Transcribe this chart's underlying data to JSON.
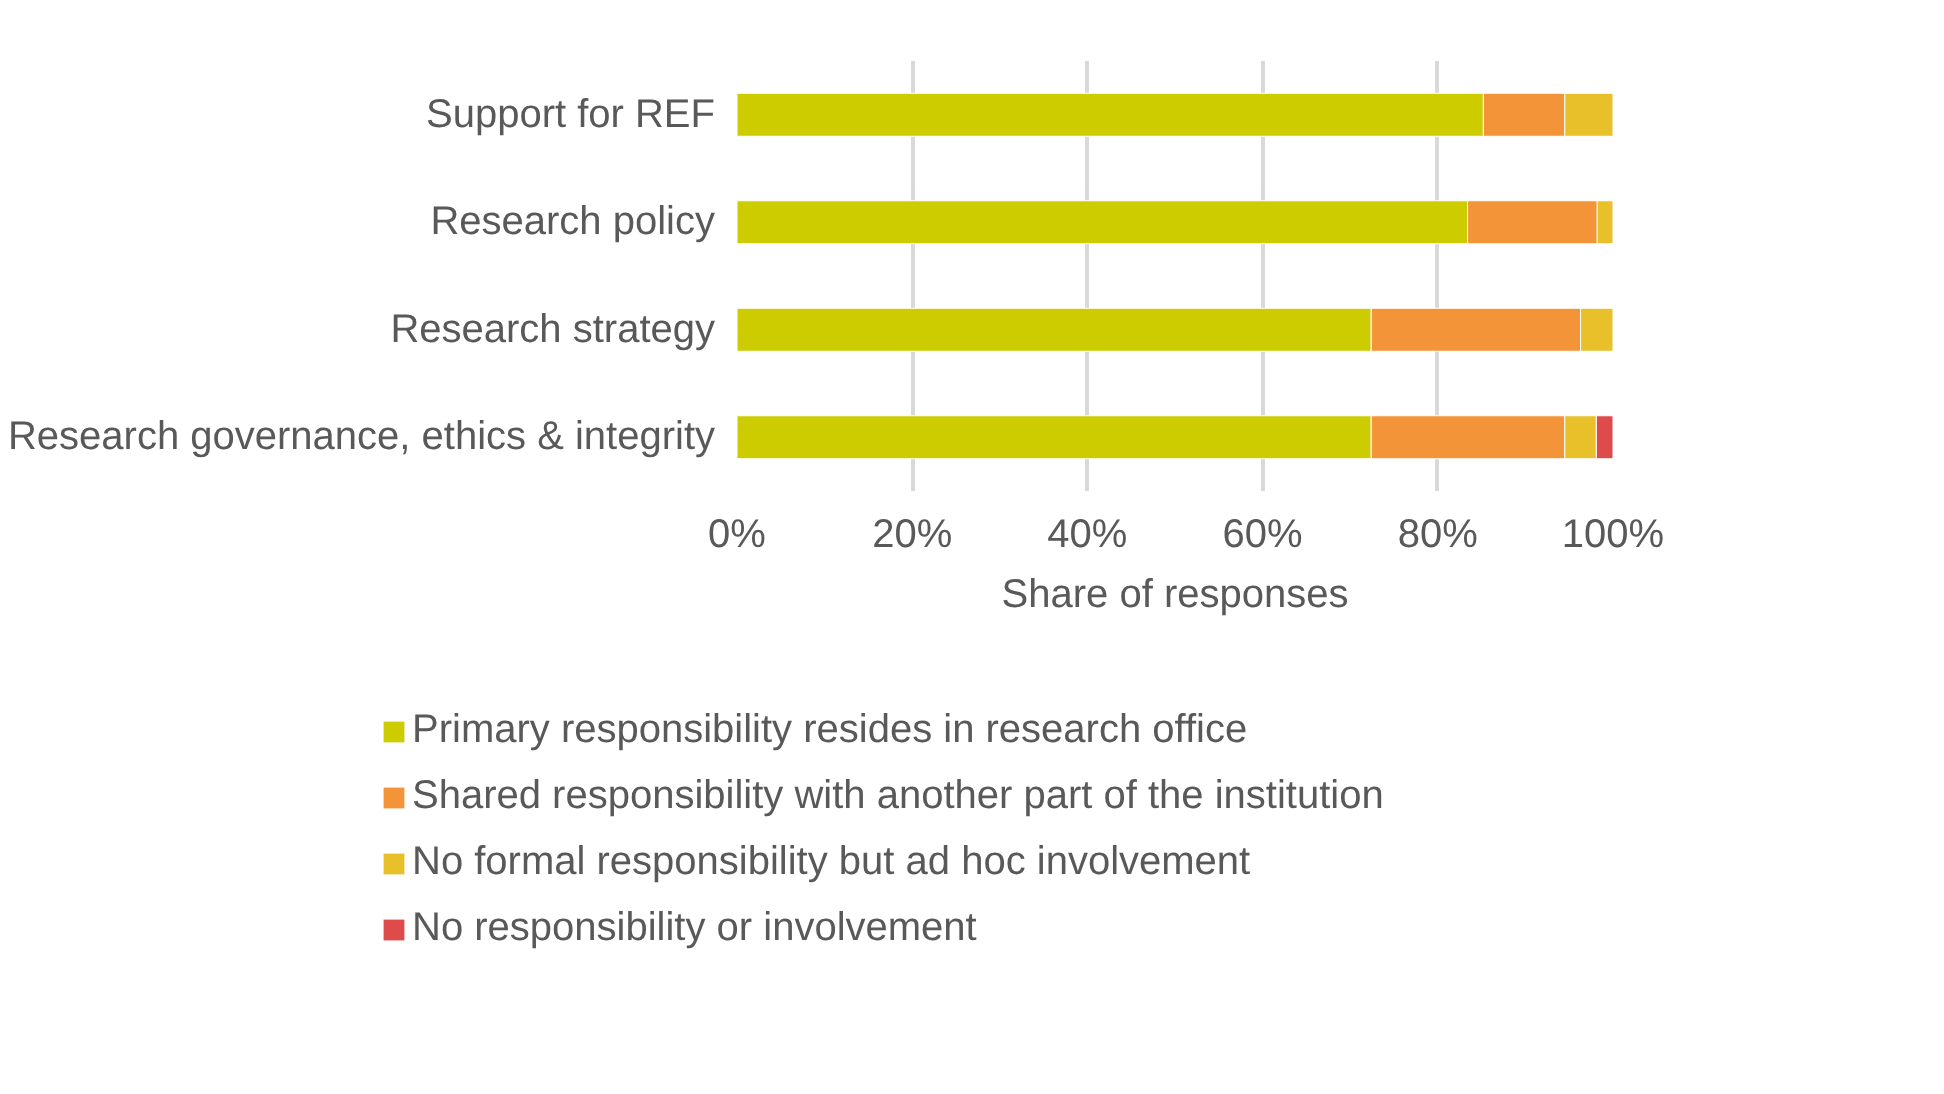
{
  "chart_data": {
    "type": "bar",
    "orientation": "horizontal",
    "stacked": true,
    "categories": [
      "Support for REF",
      "Research policy",
      "Research strategy",
      "Research governance, ethics & integrity"
    ],
    "xlabel": "Share of responses",
    "xlim": [
      0,
      100
    ],
    "xticks": [
      {
        "value": 0,
        "label": "0%"
      },
      {
        "value": 20,
        "label": "20%"
      },
      {
        "value": 40,
        "label": "40%"
      },
      {
        "value": 60,
        "label": "60%"
      },
      {
        "value": 80,
        "label": "80%"
      },
      {
        "value": 100,
        "label": "100%"
      }
    ],
    "grid": "x",
    "legend": "bottom",
    "series": [
      {
        "name": "Primary responsibility resides in research office",
        "color": "#cccc00",
        "values": [
          85.2,
          83.4,
          72.4,
          72.4
        ]
      },
      {
        "name": "Shared responsibility with another part of the institution",
        "color": "#f39438",
        "values": [
          9.3,
          14.8,
          23.9,
          22.1
        ]
      },
      {
        "name": "No formal responsibility but ad hoc involvement",
        "color": "#e8c12a",
        "values": [
          5.5,
          1.8,
          3.7,
          3.6
        ]
      },
      {
        "name": "No responsibility or involvement",
        "color": "#dd4b4b",
        "values": [
          null,
          null,
          null,
          1.9
        ]
      }
    ]
  }
}
